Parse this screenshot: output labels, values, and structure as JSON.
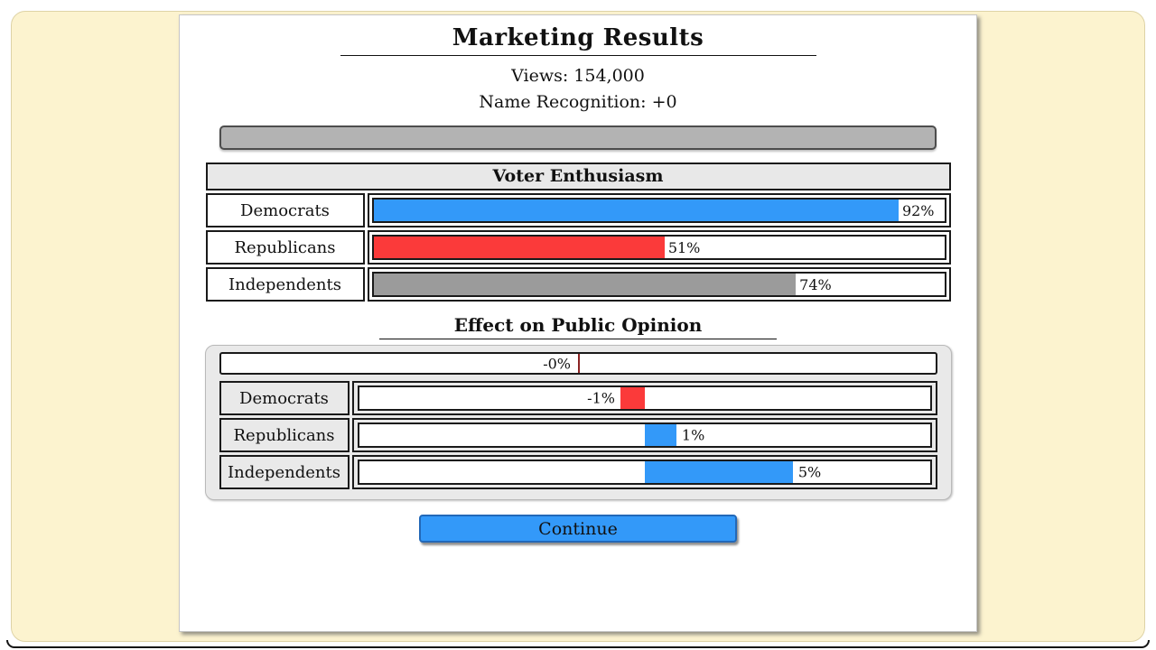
{
  "header": {
    "title": "Marketing Results",
    "views_line": "Views: 154,000",
    "name_recognition_line": "Name Recognition: +0"
  },
  "colors": {
    "democrat_blue": "#3399f9",
    "republican_red": "#fb3a3a",
    "independent_gray": "#9b9b9b",
    "panel_cream": "#fcf3cf",
    "tick_maroon": "#8b2323"
  },
  "enthusiasm": {
    "title": "Voter Enthusiasm",
    "rows": [
      {
        "label": "Democrats",
        "value_label": "92%",
        "pct": 92,
        "align": "left",
        "color": "#3399f9"
      },
      {
        "label": "Republicans",
        "value_label": "51%",
        "pct": 51,
        "align": "left",
        "color": "#fb3a3a"
      },
      {
        "label": "Independents",
        "value_label": "74%",
        "pct": 74,
        "align": "left",
        "color": "#9b9b9b"
      }
    ]
  },
  "opinion": {
    "title": "Effect on Public Opinion",
    "summary_value_label": "-0%",
    "rows": [
      {
        "label": "Democrats",
        "value_label": "-1%",
        "value": -1,
        "pct": 4.2,
        "align": "center-neg",
        "color": "#fb3a3a"
      },
      {
        "label": "Republicans",
        "value_label": "1%",
        "value": 1,
        "pct": 5.6,
        "align": "center-pos",
        "color": "#3399f9"
      },
      {
        "label": "Independents",
        "value_label": "5%",
        "value": 5,
        "pct": 26.0,
        "align": "center-pos",
        "color": "#3399f9"
      }
    ]
  },
  "footer": {
    "continue_label": "Continue"
  }
}
